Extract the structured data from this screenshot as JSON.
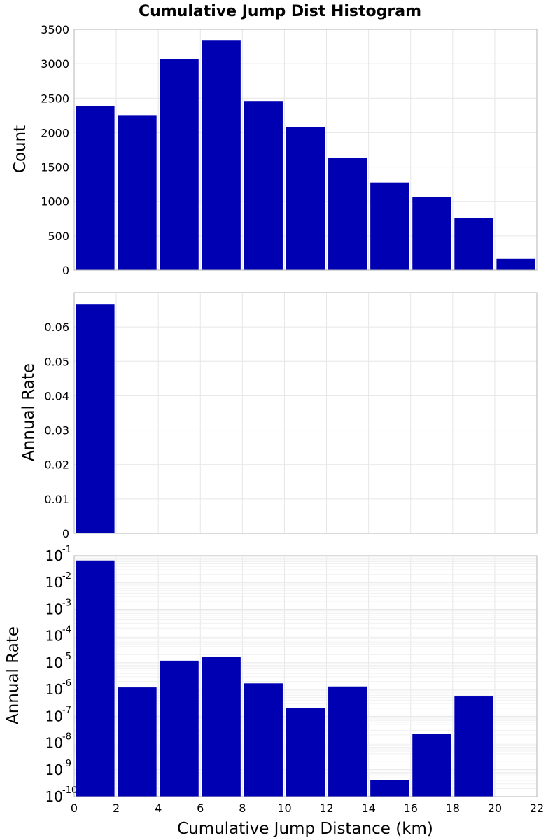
{
  "title": "Cumulative Jump Dist Histogram",
  "xlabel": "Cumulative Jump Distance (km)",
  "colors": {
    "bar": "#0000b3",
    "grid": "#e6e6e6",
    "frame": "#b4b4b4"
  },
  "chart_data": [
    {
      "type": "bar",
      "title": "Cumulative Jump Dist Histogram",
      "xlabel": "Cumulative Jump Distance (km)",
      "ylabel": "Count",
      "scale": "linear",
      "xlim": [
        0,
        22
      ],
      "ylim": [
        0,
        3500
      ],
      "bin_edges": [
        0,
        2,
        4,
        6,
        8,
        10,
        12,
        14,
        16,
        18,
        20,
        22
      ],
      "values": [
        2390,
        2255,
        3065,
        3345,
        2460,
        2085,
        1635,
        1275,
        1060,
        760,
        165
      ],
      "yticks": [
        0,
        500,
        1000,
        1500,
        2000,
        2500,
        3000,
        3500
      ]
    },
    {
      "type": "bar",
      "xlabel": "Cumulative Jump Distance (km)",
      "ylabel": "Annual Rate",
      "scale": "linear",
      "xlim": [
        0,
        22
      ],
      "ylim": [
        0,
        0.07
      ],
      "bin_edges": [
        0,
        2,
        4,
        6,
        8,
        10,
        12,
        14,
        16,
        18,
        20,
        22
      ],
      "values": [
        0.0665,
        1.2e-06,
        1.2e-05,
        1.7e-05,
        1.7e-06,
        2e-07,
        1.3e-06,
        4e-10,
        2.2e-08,
        5.5e-07,
        0
      ],
      "yticks": [
        0,
        0.01,
        0.02,
        0.03,
        0.04,
        0.05,
        0.06
      ],
      "ytick_labels": [
        "0",
        "0.01",
        "0.02",
        "0.03",
        "0.04",
        "0.05",
        "0.06"
      ]
    },
    {
      "type": "bar",
      "xlabel": "Cumulative Jump Distance (km)",
      "ylabel": "Annual Rate",
      "scale": "log",
      "xlim": [
        0,
        22
      ],
      "ylim": [
        1e-10,
        0.1
      ],
      "bin_edges": [
        0,
        2,
        4,
        6,
        8,
        10,
        12,
        14,
        16,
        18,
        20,
        22
      ],
      "values": [
        0.0665,
        1.2e-06,
        1.2e-05,
        1.7e-05,
        1.7e-06,
        2e-07,
        1.3e-06,
        4e-10,
        2.2e-08,
        5.5e-07,
        0
      ],
      "ytick_exponents": [
        "-10",
        "-9",
        "-8",
        "-7",
        "-6",
        "-5",
        "-4",
        "-3",
        "-2",
        "-1"
      ],
      "ytick_base": "10",
      "xticks": [
        "0",
        "2",
        "4",
        "6",
        "8",
        "10",
        "12",
        "14",
        "16",
        "18",
        "20",
        "22"
      ]
    }
  ]
}
